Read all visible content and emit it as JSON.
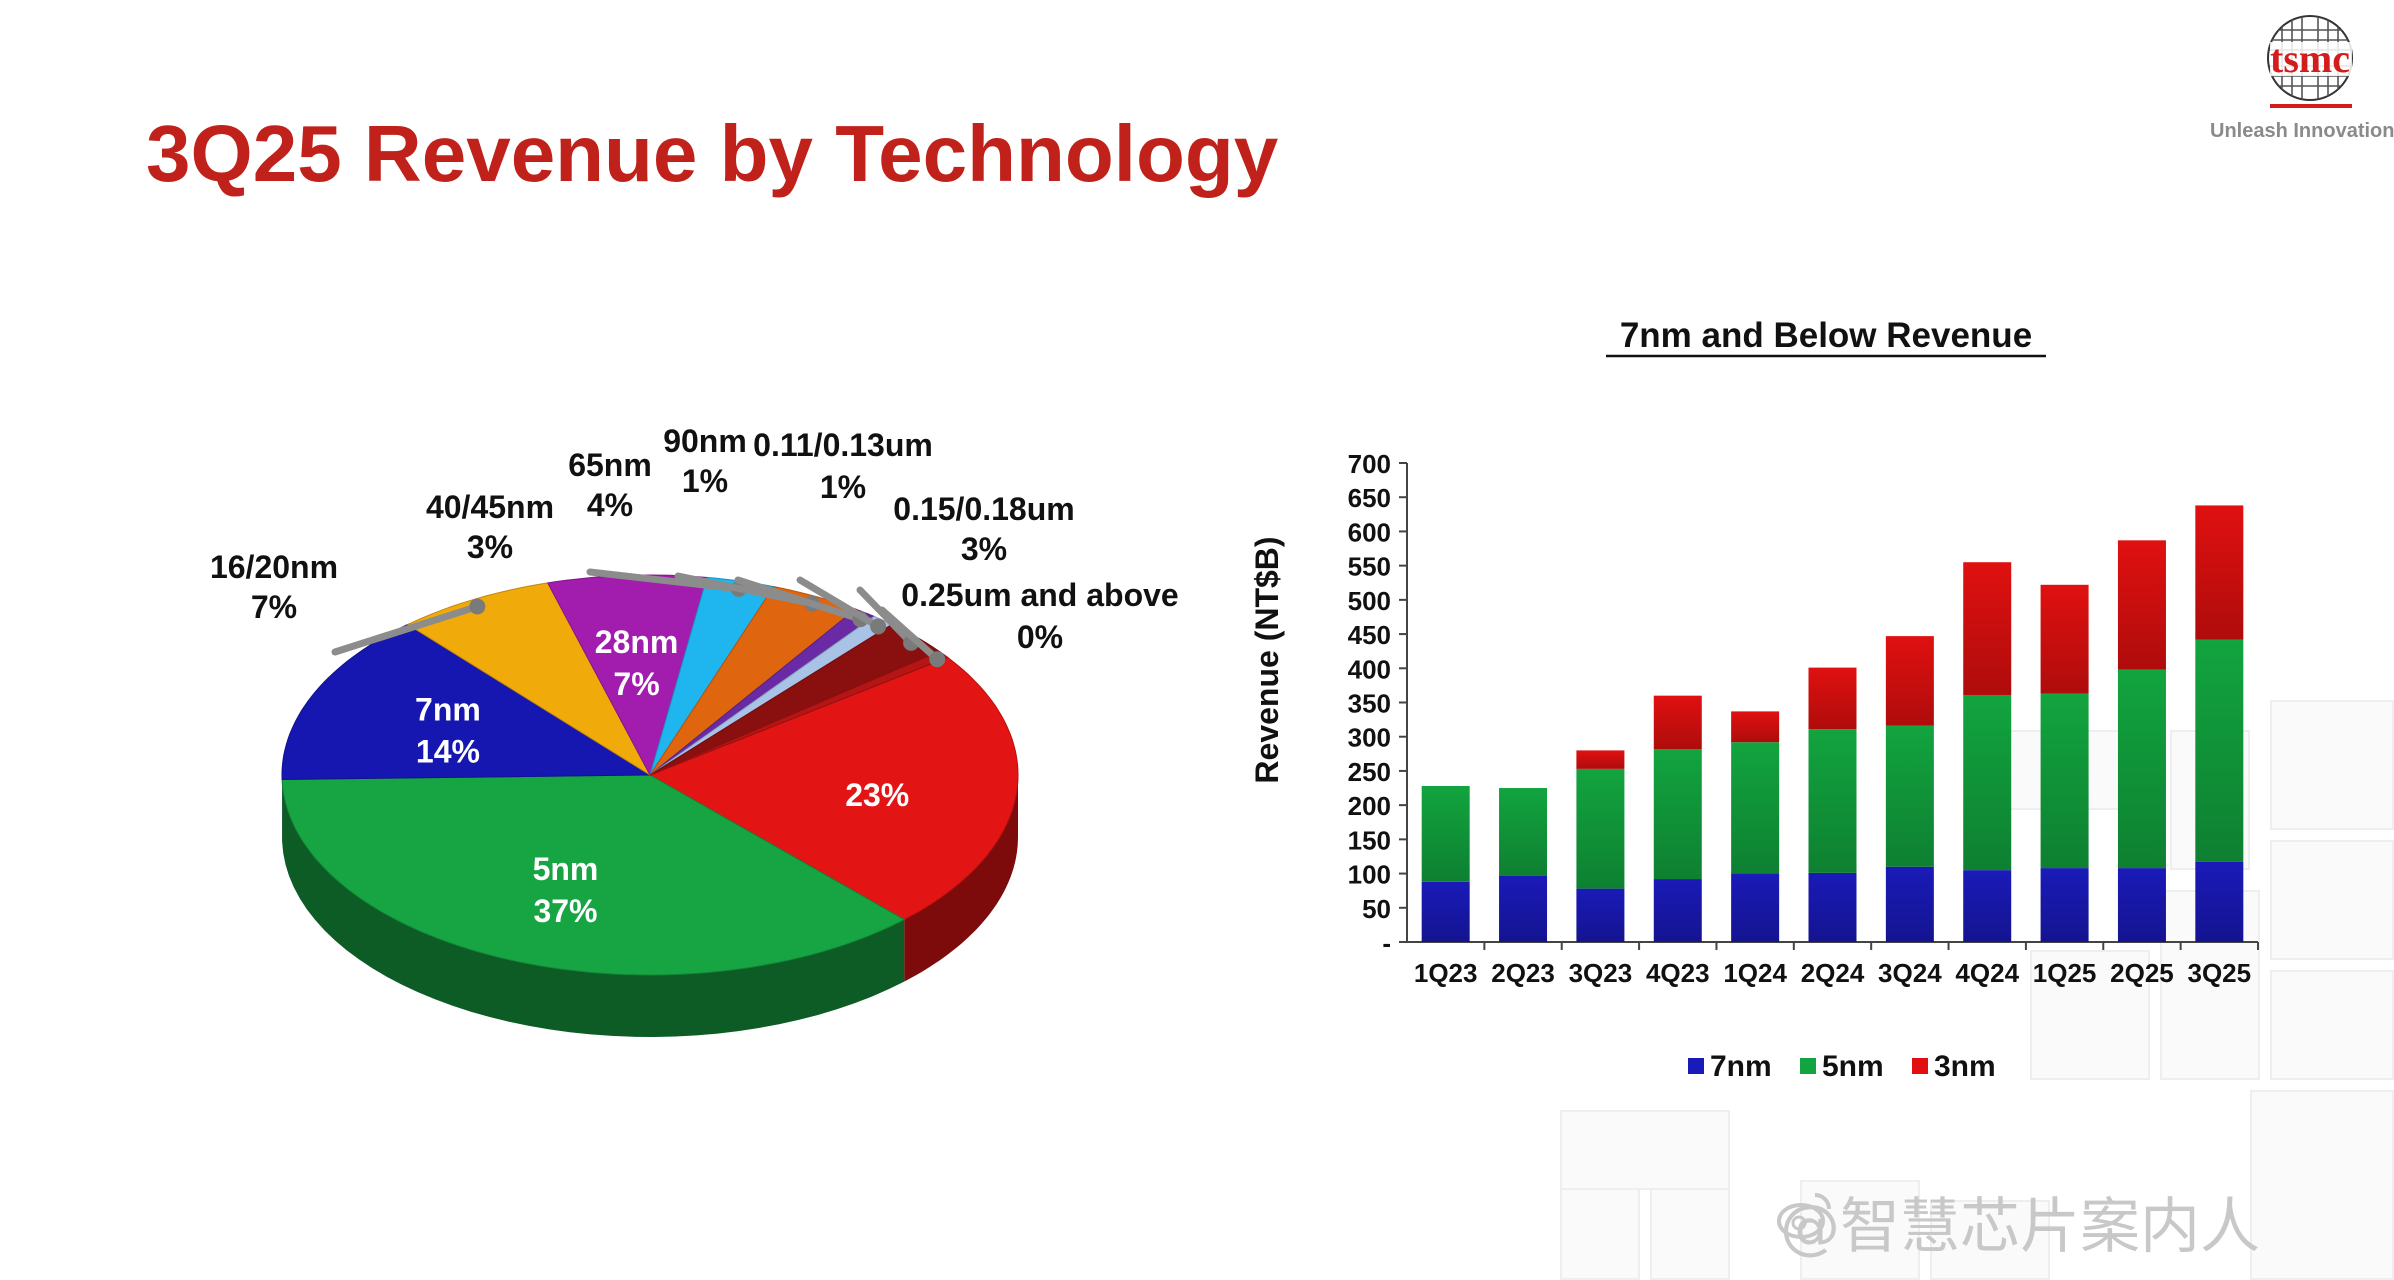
{
  "slide": {
    "title": "3Q25 Revenue by Technology",
    "logo_text": "tsmc",
    "tagline": "Unleash Innovation",
    "watermark": "@智慧芯片案内人"
  },
  "colors": {
    "title_red": "#c0221b",
    "n7": "#1a1ab8",
    "n5": "#12a43f",
    "n3": "#e01010"
  },
  "chart_data": [
    {
      "type": "pie",
      "title": "",
      "slices": [
        {
          "label": "3nm",
          "value": 23,
          "value_label": "23%",
          "color": "#e31414"
        },
        {
          "label": "5nm",
          "value": 37,
          "value_label": "37%",
          "color": "#17a544"
        },
        {
          "label": "7nm",
          "value": 14,
          "value_label": "14%",
          "color": "#1616b0"
        },
        {
          "label": "16/20nm",
          "value": 7,
          "value_label": "7%",
          "color": "#f0aa0a"
        },
        {
          "label": "28nm",
          "value": 7,
          "value_label": "7%",
          "color": "#a21cae"
        },
        {
          "label": "40/45nm",
          "value": 3,
          "value_label": "3%",
          "color": "#1fb6ef"
        },
        {
          "label": "65nm",
          "value": 4,
          "value_label": "4%",
          "color": "#e0650f"
        },
        {
          "label": "90nm",
          "value": 1,
          "value_label": "1%",
          "color": "#6a2aa6"
        },
        {
          "label": "0.11/0.13um",
          "value": 1,
          "value_label": "1%",
          "color": "#a9c3e6"
        },
        {
          "label": "0.15/0.18um",
          "value": 3,
          "value_label": "3%",
          "color": "#8a0f0f"
        },
        {
          "label": "0.25um and above",
          "value": 0,
          "value_label": "0%",
          "color": "#b71515"
        }
      ]
    },
    {
      "type": "bar",
      "stacked": true,
      "title": "7nm and Below Revenue",
      "ylabel": "Revenue (NT$B)",
      "ylim": [
        0,
        700
      ],
      "yticks": [
        0,
        50,
        100,
        150,
        200,
        250,
        300,
        350,
        400,
        450,
        500,
        550,
        600,
        650,
        700
      ],
      "ytick_labels": [
        "-",
        "50",
        "100",
        "150",
        "200",
        "250",
        "300",
        "350",
        "400",
        "450",
        "500",
        "550",
        "600",
        "650",
        "700"
      ],
      "categories": [
        "1Q23",
        "2Q23",
        "3Q23",
        "4Q23",
        "1Q24",
        "2Q24",
        "3Q24",
        "4Q24",
        "1Q25",
        "2Q25",
        "3Q25"
      ],
      "series": [
        {
          "name": "7nm",
          "color": "#1a1ab8",
          "values": [
            88,
            97,
            78,
            92,
            100,
            101,
            110,
            105,
            108,
            108,
            117
          ]
        },
        {
          "name": "5nm",
          "color": "#12a43f",
          "values": [
            140,
            128,
            175,
            190,
            192,
            210,
            206,
            256,
            255,
            290,
            325
          ]
        },
        {
          "name": "3nm",
          "color": "#e01010",
          "values": [
            0,
            0,
            27,
            78,
            45,
            90,
            131,
            194,
            159,
            189,
            196
          ]
        }
      ],
      "legend_position": "bottom",
      "grid": false
    }
  ]
}
